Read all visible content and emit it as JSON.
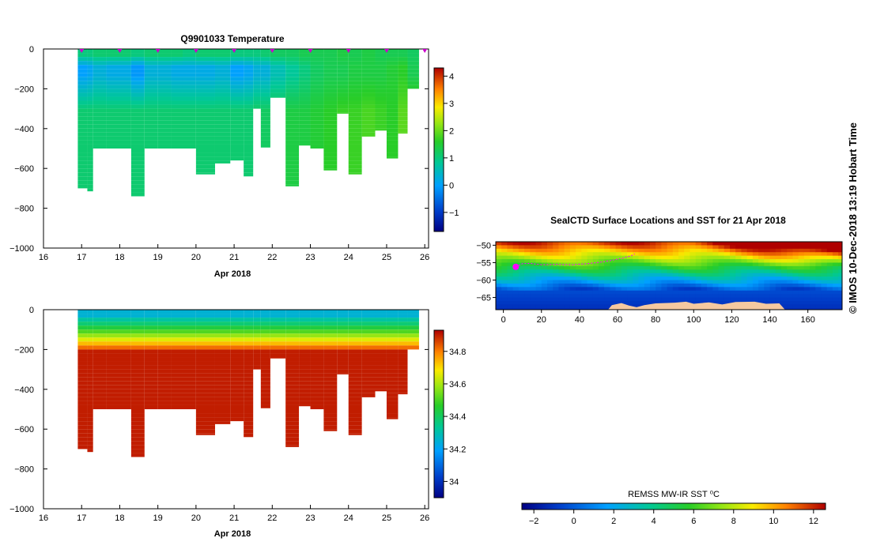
{
  "credit_text": "© IMOS 10-Dec-2018 13:19 Hobart Time",
  "chart_data": [
    {
      "id": "temperature",
      "type": "heatmap",
      "title": "Q9901033  Temperature",
      "xlabel": "Apr 2018",
      "ylabel": "",
      "xlim": [
        16,
        26.1
      ],
      "ylim": [
        -1000,
        0
      ],
      "x_ticks": [
        16,
        17,
        18,
        19,
        20,
        21,
        22,
        23,
        24,
        25,
        26
      ],
      "y_ticks": [
        0,
        -200,
        -400,
        -600,
        -800,
        -1000
      ],
      "profile_markers_x": [
        17.0,
        18.0,
        19.0,
        20.0,
        21.0,
        22.0,
        23.0,
        24.0,
        25.0,
        26.0
      ],
      "colorbar": {
        "min": -1.7,
        "max": 4.3,
        "ticks": [
          -1,
          0,
          1,
          2,
          3,
          4
        ]
      },
      "profiles": {
        "x_start": [
          16.9,
          17.15,
          17.3,
          17.65,
          18.3,
          18.65,
          19.0,
          19.35,
          19.65,
          20.0,
          20.5,
          20.9,
          21.25,
          21.5,
          21.7,
          21.95,
          22.35,
          22.7,
          23.0,
          23.35,
          23.7,
          24.0,
          24.35,
          24.7,
          25.0,
          25.3,
          25.55
        ],
        "x_end": [
          17.15,
          17.3,
          17.65,
          18.3,
          18.65,
          19.0,
          19.35,
          19.65,
          20.0,
          20.5,
          20.9,
          21.25,
          21.5,
          21.7,
          21.95,
          22.35,
          22.7,
          23.0,
          23.35,
          23.7,
          24.0,
          24.35,
          24.7,
          25.0,
          25.3,
          25.55,
          25.85
        ],
        "max_depth": [
          -700,
          -715,
          -500,
          -500,
          -740,
          -500,
          -500,
          -500,
          -500,
          -630,
          -575,
          -560,
          -640,
          -300,
          -495,
          -245,
          -690,
          -485,
          -500,
          -610,
          -325,
          -630,
          -440,
          -410,
          -550,
          -425,
          -200
        ],
        "surface_temp": [
          1.0,
          1.0,
          1.1,
          1.1,
          1.0,
          1.1,
          1.1,
          1.1,
          1.0,
          1.1,
          1.1,
          1.0,
          1.0,
          1.0,
          1.1,
          1.2,
          1.2,
          1.3,
          1.3,
          1.3,
          1.4,
          1.3,
          1.4,
          1.3,
          1.3,
          1.3,
          1.2
        ],
        "min_temp": [
          0.0,
          0.1,
          0.3,
          0.2,
          -0.1,
          0.3,
          0.3,
          0.2,
          0.2,
          0.2,
          0.3,
          0.0,
          0.1,
          0.3,
          0.3,
          0.6,
          0.8,
          1.0,
          1.2,
          1.3,
          1.3,
          1.4,
          1.4,
          1.4,
          1.5,
          1.6,
          1.3
        ],
        "deep_temp": [
          1.1,
          1.1,
          1.1,
          1.1,
          1.1,
          1.1,
          1.1,
          1.1,
          1.1,
          1.1,
          1.1,
          1.1,
          1.1,
          1.2,
          1.2,
          1.3,
          1.4,
          1.4,
          1.5,
          1.6,
          1.7,
          1.7,
          1.8,
          1.7,
          1.6,
          1.9,
          1.9
        ]
      }
    },
    {
      "id": "salinity",
      "type": "heatmap",
      "title": "",
      "xlabel": "Apr 2018",
      "ylabel": "",
      "xlim": [
        16,
        26.1
      ],
      "ylim": [
        -1000,
        0
      ],
      "x_ticks": [
        16,
        17,
        18,
        19,
        20,
        21,
        22,
        23,
        24,
        25,
        26
      ],
      "y_ticks": [
        0,
        -200,
        -400,
        -600,
        -800,
        -1000
      ],
      "colorbar": {
        "min": 33.9,
        "max": 34.93,
        "ticks": [
          34,
          34.2,
          34.4,
          34.6,
          34.8
        ]
      },
      "surface_salinity": 34.3,
      "deep_salinity": 34.9
    },
    {
      "id": "sst_map",
      "type": "heatmap",
      "title": "SealCTD Surface Locations and SST for 21 Apr 2018",
      "xlim": [
        -4,
        178
      ],
      "ylim": [
        -68.5,
        -49
      ],
      "x_ticks": [
        0,
        20,
        40,
        60,
        80,
        100,
        120,
        140,
        160
      ],
      "y_ticks": [
        -50,
        -55,
        -60,
        -65
      ],
      "colorbar": {
        "label": "REMSS MW-IR SST ⁰C",
        "min": -2.6,
        "max": 12.6,
        "ticks": [
          -2,
          0,
          2,
          4,
          6,
          8,
          10,
          12
        ]
      },
      "track": {
        "lon": [
          6.5,
          8,
          10,
          14,
          20,
          28,
          36,
          44,
          52,
          58,
          63,
          66,
          68,
          69
        ],
        "lat": [
          -56.2,
          -55.8,
          -55.3,
          -55.2,
          -55.6,
          -55.5,
          -55.6,
          -55.3,
          -54.8,
          -54.2,
          -53.7,
          -53.2,
          -52.8,
          -52.5
        ]
      }
    }
  ]
}
